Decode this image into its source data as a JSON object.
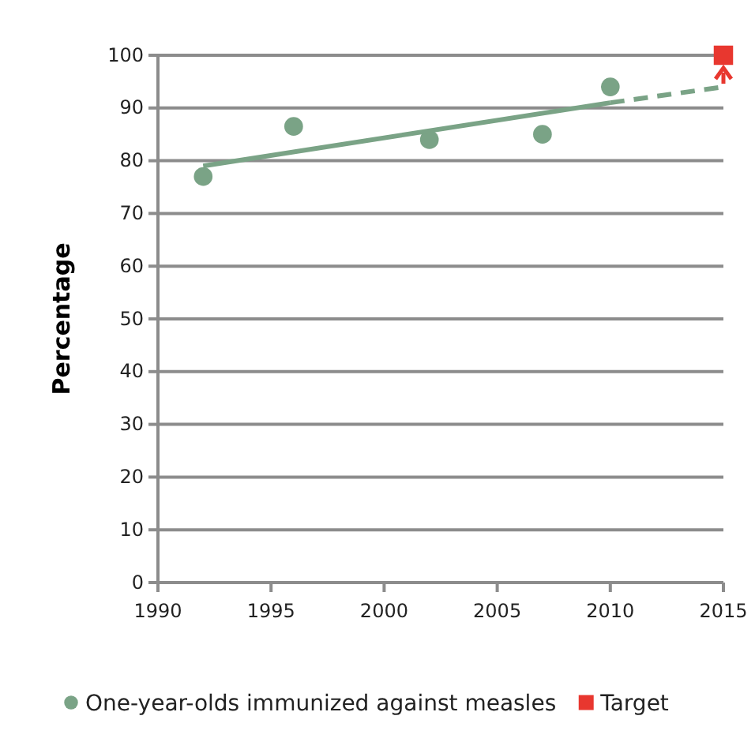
{
  "chart_data": {
    "type": "scatter",
    "ylabel": "Percentage",
    "xlim": [
      1990,
      2015
    ],
    "xticks": [
      1990,
      1995,
      2000,
      2005,
      2010,
      2015
    ],
    "ylim": [
      0,
      100
    ],
    "yticks": [
      0,
      10,
      20,
      30,
      40,
      50,
      60,
      70,
      80,
      90,
      100
    ],
    "grid": "y",
    "legend": "bottom",
    "series": [
      {
        "name": "One-year-olds immunized against measles",
        "marker": "circle",
        "color": "#7aa386",
        "x": [
          1992,
          1996,
          2002,
          2007,
          2010
        ],
        "values": [
          77,
          86.5,
          84,
          85,
          94
        ]
      },
      {
        "type": "line",
        "marker": "none",
        "line_style": "solid",
        "color": "#7aa386",
        "x": [
          1992,
          2010
        ],
        "values": [
          79,
          91
        ]
      },
      {
        "type": "line",
        "marker": "none",
        "line_style": "dashed",
        "color": "#7aa386",
        "x": [
          2010,
          2015
        ],
        "values": [
          91,
          94
        ]
      },
      {
        "name": "Target",
        "marker": "square",
        "color": "#e8372f",
        "x": [
          2015
        ],
        "values": [
          100
        ]
      }
    ]
  }
}
